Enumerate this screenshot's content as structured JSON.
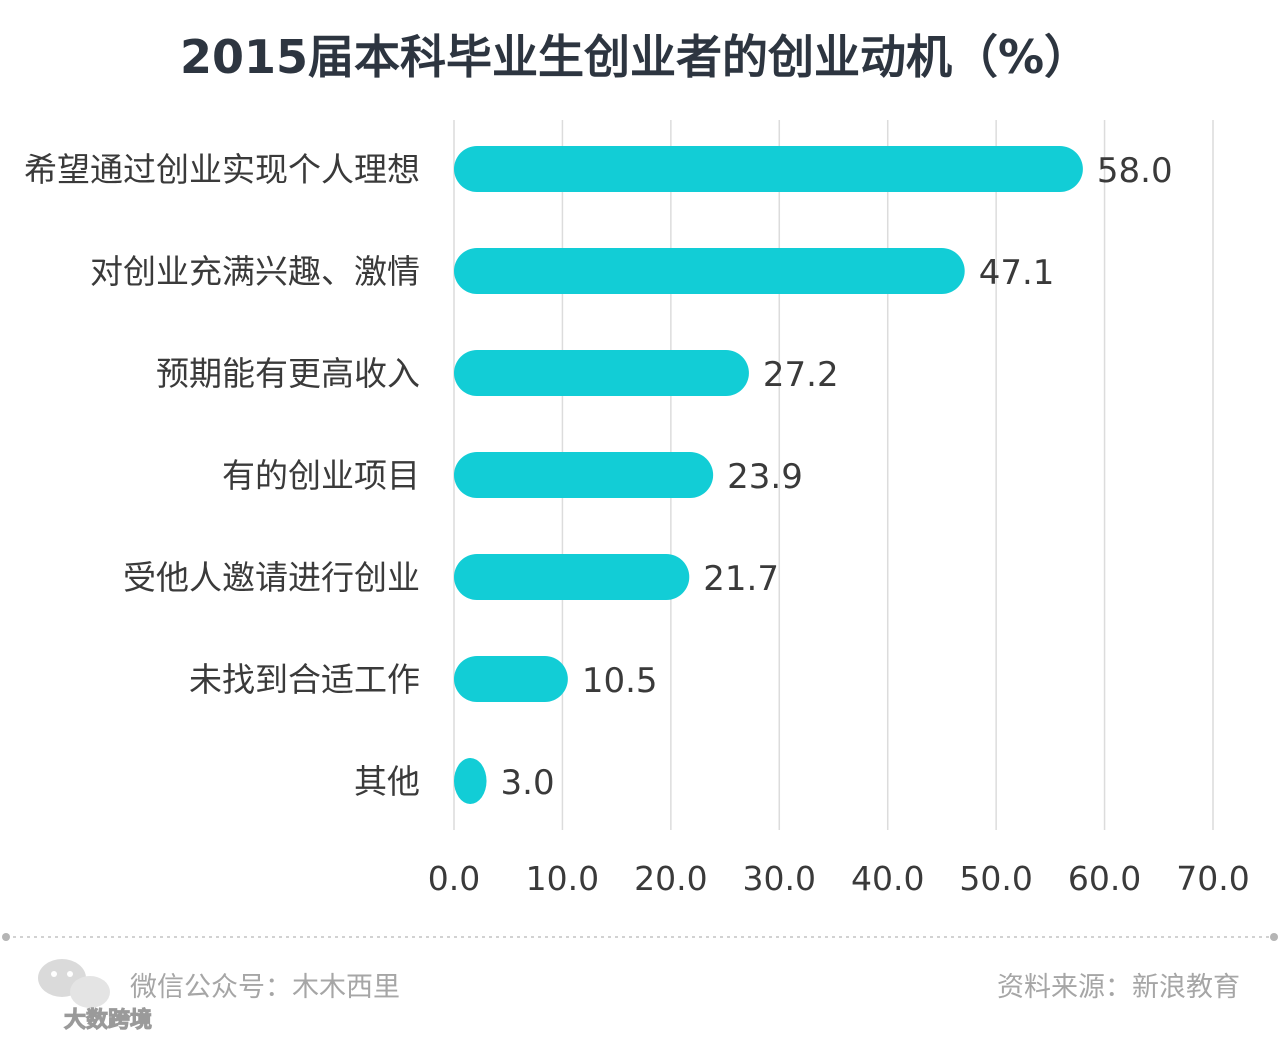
{
  "chart_data": {
    "type": "bar",
    "orientation": "horizontal",
    "title": "2015届本科毕业生创业者的创业动机（%）",
    "categories": [
      "希望通过创业实现个人理想",
      "对创业充满兴趣、激情",
      "预期能有更高收入",
      "有的创业项目",
      "受他人邀请进行创业",
      "未找到合适工作",
      "其他"
    ],
    "values": [
      58.0,
      47.1,
      27.2,
      23.9,
      21.7,
      10.5,
      3.0
    ],
    "value_labels": [
      "58.0",
      "47.1",
      "27.2",
      "23.9",
      "21.7",
      "10.5",
      "3.0"
    ],
    "xlim": [
      0,
      70
    ],
    "xticks": [
      "0.0",
      "10.0",
      "20.0",
      "30.0",
      "40.0",
      "50.0",
      "60.0",
      "70.0"
    ],
    "xtick_values": [
      0,
      10,
      20,
      30,
      40,
      50,
      60,
      70
    ],
    "grid": true,
    "bar_color": "#12cdd6"
  },
  "footer": {
    "left": "微信公众号：木木西里",
    "right": "资料来源：新浪教育",
    "watermark": "大数跨境"
  },
  "colors": {
    "title": "#2d3540",
    "label": "#3a3a3a",
    "grid": "#dcdcdc",
    "footer": "#a6a6a6",
    "divider": "#bdbdbd"
  }
}
